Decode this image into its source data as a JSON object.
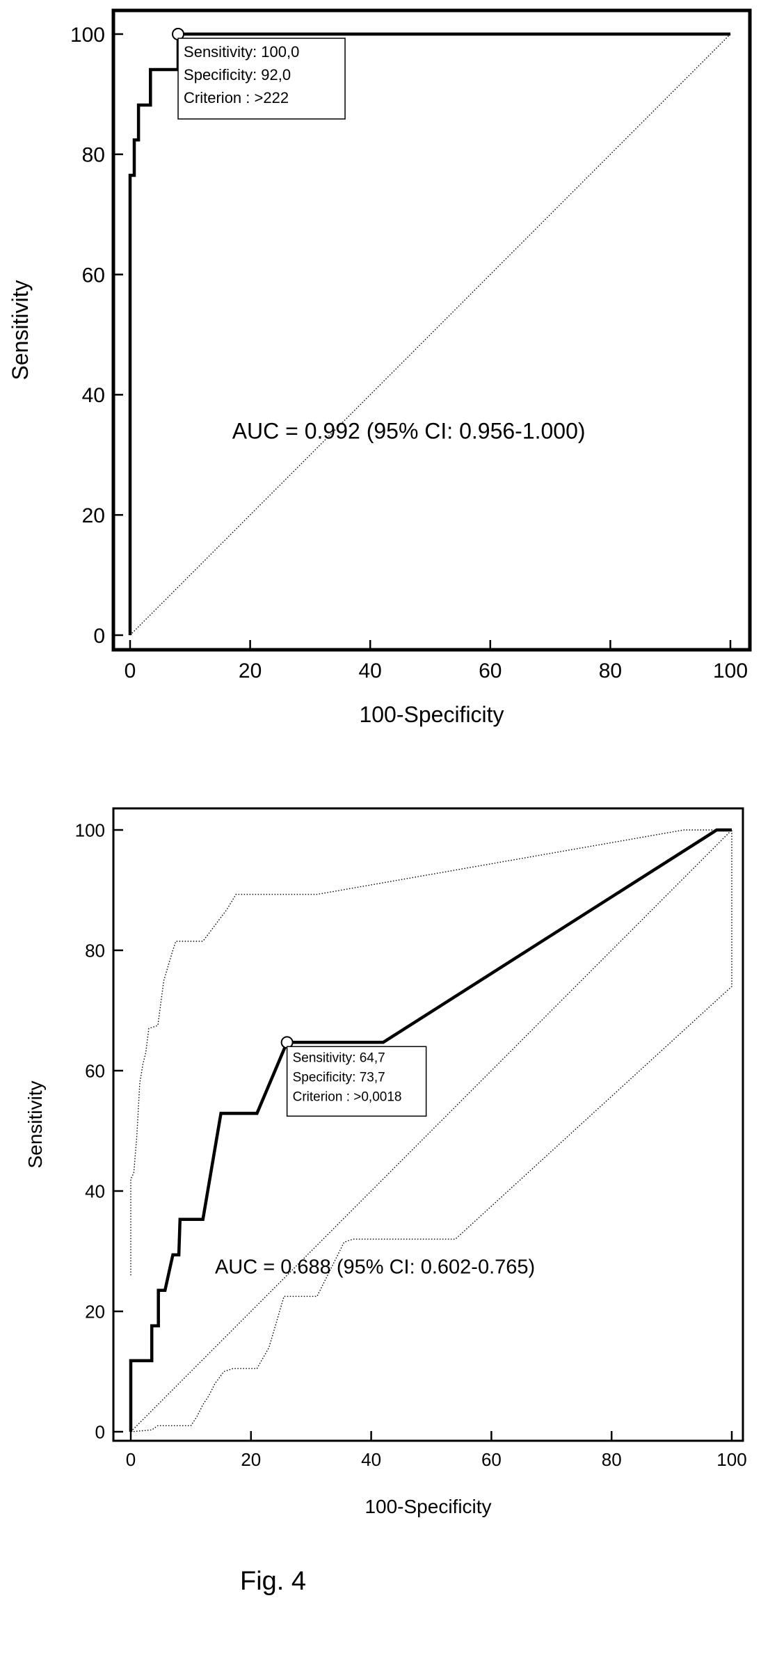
{
  "chart_data": [
    {
      "type": "line",
      "xlabel": "100-Specificity",
      "ylabel": "Sensitivity",
      "xlim": [
        0,
        100
      ],
      "ylim": [
        0,
        100
      ],
      "xticks": [
        "0",
        "20",
        "40",
        "60",
        "80",
        "100"
      ],
      "yticks": [
        "0",
        "20",
        "40",
        "60",
        "80",
        "100"
      ],
      "series": [
        {
          "role": "roc",
          "style": "solid-thick",
          "points": [
            [
              0,
              0
            ],
            [
              0,
              76.5
            ],
            [
              0.7,
              76.5
            ],
            [
              0.7,
              82.4
            ],
            [
              1.4,
              82.4
            ],
            [
              1.4,
              88.2
            ],
            [
              3.4,
              88.2
            ],
            [
              3.4,
              94.1
            ],
            [
              8,
              94.1
            ],
            [
              8,
              100
            ],
            [
              100,
              100
            ]
          ]
        },
        {
          "role": "reference",
          "style": "dotted",
          "points": [
            [
              0,
              0
            ],
            [
              100,
              100
            ]
          ]
        }
      ],
      "marker": {
        "x": 8,
        "y": 100
      },
      "annotation_box": [
        "Sensitivity: 100,0",
        "Specificity: 92,0",
        "Criterion : >222"
      ],
      "auc_label": "AUC = 0.992 (95% CI: 0.956-1.000)",
      "auc_label_at": {
        "x": 17,
        "y": 34
      }
    },
    {
      "type": "line",
      "xlabel": "100-Specificity",
      "ylabel": "Sensitivity",
      "xlim": [
        0,
        100
      ],
      "ylim": [
        0,
        100
      ],
      "xticks": [
        "0",
        "20",
        "40",
        "60",
        "80",
        "100"
      ],
      "yticks": [
        "0",
        "20",
        "40",
        "60",
        "80",
        "100"
      ],
      "series": [
        {
          "role": "roc",
          "style": "solid-thick",
          "points": [
            [
              0,
              0
            ],
            [
              0,
              11.8
            ],
            [
              3.5,
              11.8
            ],
            [
              3.5,
              17.6
            ],
            [
              4.6,
              17.6
            ],
            [
              4.6,
              23.5
            ],
            [
              5.7,
              23.5
            ],
            [
              7,
              29.4
            ],
            [
              8,
              29.4
            ],
            [
              8.2,
              35.3
            ],
            [
              12,
              35.3
            ],
            [
              15,
              52.9
            ],
            [
              21,
              52.9
            ],
            [
              26,
              64.7
            ],
            [
              42,
              64.7
            ],
            [
              97.5,
              100
            ],
            [
              100,
              100
            ]
          ]
        },
        {
          "role": "reference",
          "style": "dotted",
          "points": [
            [
              0,
              0
            ],
            [
              100,
              100
            ]
          ]
        },
        {
          "role": "ci-upper",
          "style": "dotted",
          "points": [
            [
              0,
              26
            ],
            [
              0,
              42
            ],
            [
              0.5,
              43
            ],
            [
              1,
              49
            ],
            [
              1.5,
              58
            ],
            [
              2,
              61
            ],
            [
              2.5,
              63
            ],
            [
              3,
              67
            ],
            [
              4.5,
              67.5
            ],
            [
              5.5,
              75
            ],
            [
              7,
              80
            ],
            [
              7.5,
              81.5
            ],
            [
              12,
              81.5
            ],
            [
              16,
              86.8
            ],
            [
              17.5,
              89.3
            ],
            [
              31,
              89.3
            ],
            [
              92,
              100
            ],
            [
              100,
              100
            ]
          ]
        },
        {
          "role": "ci-lower",
          "style": "dotted",
          "points": [
            [
              0,
              0
            ],
            [
              3.5,
              0.3
            ],
            [
              4.5,
              1
            ],
            [
              10,
              1
            ],
            [
              11,
              2.5
            ],
            [
              12,
              4.5
            ],
            [
              13,
              6
            ],
            [
              14,
              8
            ],
            [
              15.5,
              10
            ],
            [
              17,
              10.5
            ],
            [
              21,
              10.5
            ],
            [
              23,
              14
            ],
            [
              25.5,
              22.5
            ],
            [
              31,
              22.5
            ],
            [
              35.5,
              31.5
            ],
            [
              37,
              32
            ],
            [
              54,
              32
            ],
            [
              100,
              74
            ],
            [
              100,
              100
            ]
          ]
        }
      ],
      "marker": {
        "x": 26,
        "y": 64.7
      },
      "annotation_box": [
        "Sensitivity: 64,7",
        "Specificity: 73,7",
        "Criterion : >0,0018"
      ],
      "auc_label": "AUC = 0.688 (95% CI: 0.602-0.765)",
      "auc_label_at": {
        "x": 14,
        "y": 27.5
      }
    }
  ],
  "caption": "Fig. 4"
}
